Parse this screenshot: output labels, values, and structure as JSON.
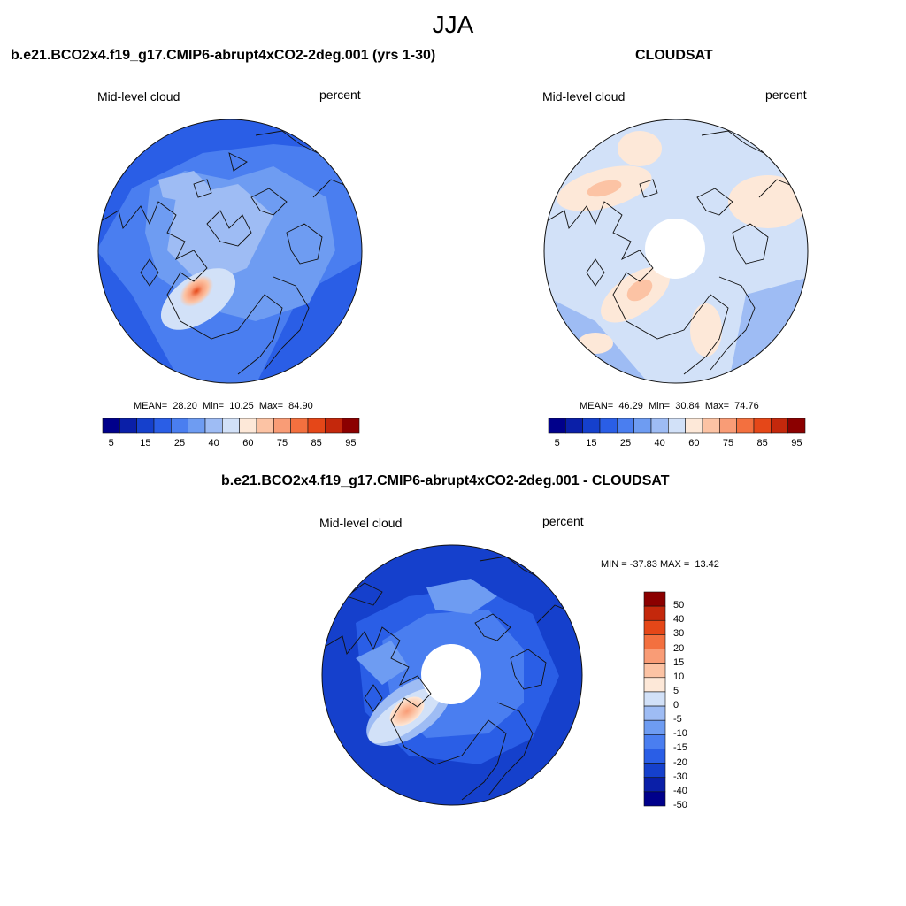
{
  "figure": {
    "season": "JJA"
  },
  "palette": {
    "colors": [
      "#00008b",
      "#0a1fa8",
      "#1540cc",
      "#2a5ee6",
      "#4a7ef0",
      "#6e9cf2",
      "#9ebcf4",
      "#d2e1f8",
      "#fde8d8",
      "#fcc3a4",
      "#f99c76",
      "#f3703f",
      "#e54718",
      "#c4280c",
      "#8b0000"
    ],
    "coast": "#111111",
    "hole": "#ffffff"
  },
  "panels": {
    "model": {
      "title": "b.e21.BCO2x4.f19_g17.CMIP6-abrupt4xCO2-2deg.001 (yrs 1-30)",
      "variable": "Mid-level cloud",
      "units": "percent",
      "stats": "MEAN=  28.20  Min=  10.25  Max=  84.90",
      "colorbar_ticks": [
        "5",
        "15",
        "25",
        "40",
        "60",
        "75",
        "85",
        "95"
      ]
    },
    "obs": {
      "title": "CLOUDSAT",
      "variable": "Mid-level cloud",
      "units": "percent",
      "stats": "MEAN=  46.29  Min=  30.84  Max=  74.76",
      "colorbar_ticks": [
        "5",
        "15",
        "25",
        "40",
        "60",
        "75",
        "85",
        "95"
      ]
    },
    "diff": {
      "title": "b.e21.BCO2x4.f19_g17.CMIP6-abrupt4xCO2-2deg.001 - CLOUDSAT",
      "variable": "Mid-level cloud",
      "units": "percent",
      "stats": "MIN = -37.83 MAX =  13.42",
      "colorbar_ticks": [
        "50",
        "40",
        "30",
        "20",
        "15",
        "10",
        "5",
        "0",
        "-5",
        "-10",
        "-15",
        "-20",
        "-30",
        "-40",
        "-50"
      ]
    }
  }
}
